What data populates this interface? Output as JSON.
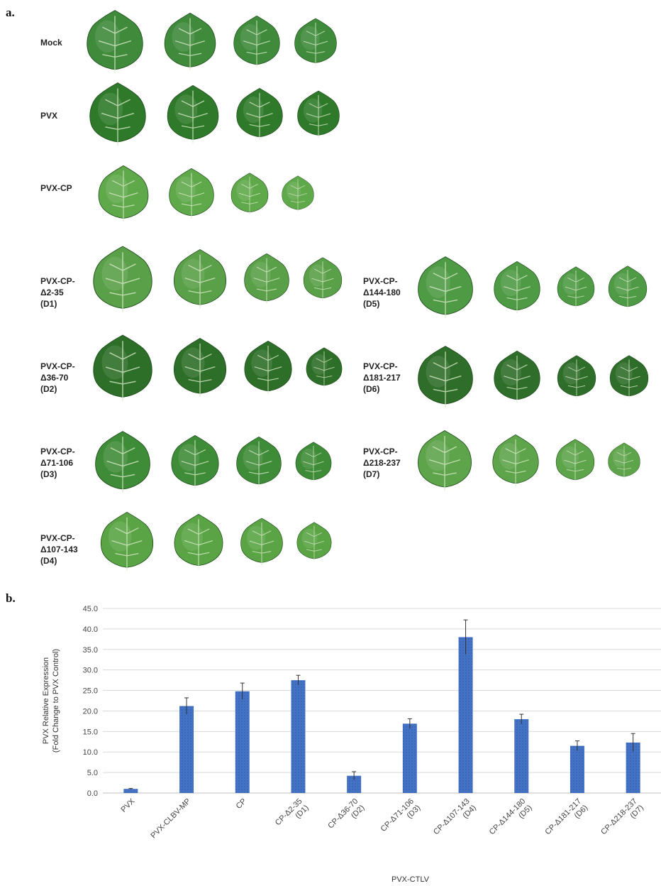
{
  "panel_a": {
    "letter": "a.",
    "rows": [
      {
        "label_lines": [
          "Mock"
        ],
        "leaves": 4,
        "tone": "#3f8a3b"
      },
      {
        "label_lines": [
          "PVX"
        ],
        "leaves": 4,
        "tone": "#2f7a2a"
      },
      {
        "label_lines": [
          "PVX-CP"
        ],
        "leaves": 4,
        "tone": "#5fa94a"
      },
      {
        "label_lines": [
          "PVX-CP-",
          "Δ2-35",
          "(D1)"
        ],
        "leaves": 4,
        "tone": "#5aa048"
      },
      {
        "label_lines": [
          "PVX-CP-",
          "Δ144-180",
          "(D5)"
        ],
        "leaves": 4,
        "tone": "#4f9a44"
      },
      {
        "label_lines": [
          "PVX-CP-",
          "Δ36-70",
          "(D2)"
        ],
        "leaves": 4,
        "tone": "#2d6f28"
      },
      {
        "label_lines": [
          "PVX-CP-",
          "Δ181-217",
          "(D6)"
        ],
        "leaves": 4,
        "tone": "#2f6e2a"
      },
      {
        "label_lines": [
          "PVX-CP-",
          "Δ71-106",
          "(D3)"
        ],
        "leaves": 4,
        "tone": "#3f8c38"
      },
      {
        "label_lines": [
          "PVX-CP-",
          "Δ218-237",
          "(D7)"
        ],
        "leaves": 4,
        "tone": "#5ea44b"
      },
      {
        "label_lines": [
          "PVX-CP-",
          "Δ107-143",
          "(D4)"
        ],
        "leaves": 4,
        "tone": "#5aa445"
      }
    ]
  },
  "panel_b": {
    "letter": "b."
  },
  "chart_data": {
    "type": "bar",
    "title": "",
    "xlabel": "PVX-CTLV",
    "ylabel": "PVX Relative Expression (Fold Change to PVX Control)",
    "ylabel_lines": [
      "PVX Relative Expression",
      "(Fold Change to PVX Control)"
    ],
    "ylim": [
      0,
      45
    ],
    "yticks": [
      "0.0",
      "5.0",
      "10.0",
      "15.0",
      "20.0",
      "25.0",
      "30.0",
      "35.0",
      "40.0",
      "45.0"
    ],
    "grid": true,
    "bar_color": "#4472c4",
    "categories": [
      {
        "lines": [
          "PVX"
        ]
      },
      {
        "lines": [
          "PVX-CLBV-MP"
        ]
      },
      {
        "lines": [
          "CP"
        ]
      },
      {
        "lines": [
          "CP-Δ2-35",
          "(D1)"
        ]
      },
      {
        "lines": [
          "CP-Δ36-70",
          "(D2)"
        ]
      },
      {
        "lines": [
          "CP-Δ71-106",
          "(D3)"
        ]
      },
      {
        "lines": [
          "CP-Δ107-143",
          "(D4)"
        ]
      },
      {
        "lines": [
          "CP-Δ144-180",
          "(D5)"
        ]
      },
      {
        "lines": [
          "CP-Δ181-217",
          "(D6)"
        ]
      },
      {
        "lines": [
          "CP-Δ218-237",
          "(D7)"
        ]
      }
    ],
    "values": [
      1.0,
      21.2,
      24.8,
      27.5,
      4.2,
      16.9,
      38.0,
      18.0,
      11.5,
      12.3
    ],
    "errors": [
      0.1,
      2.0,
      2.0,
      1.2,
      1.0,
      1.2,
      4.2,
      1.2,
      1.2,
      2.2
    ]
  }
}
